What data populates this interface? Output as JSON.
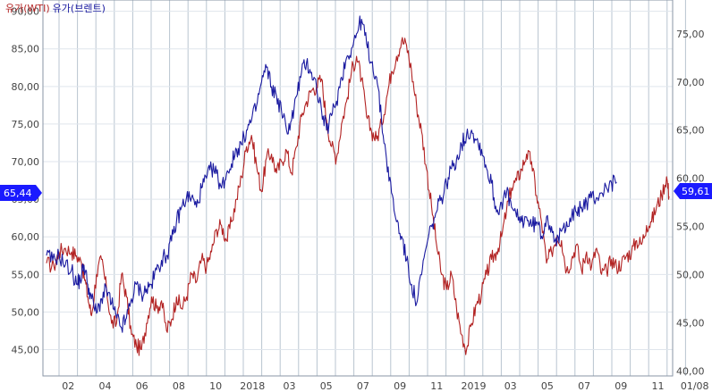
{
  "legend": {
    "wti": "유가(WTI)",
    "brent": "유가(브렌트)"
  },
  "colors": {
    "wti": "#b22222",
    "brent": "#1a1aa0",
    "grid": "#b8c4d0",
    "badge": "#1a1aff"
  },
  "chart_data": {
    "type": "line",
    "left_axis": {
      "min": 41.5,
      "max": 91.5,
      "ticks": [
        "45,00",
        "50,00",
        "55,00",
        "60,00",
        "65,00",
        "70,00",
        "75,00",
        "80,00",
        "85,00",
        "90,00"
      ],
      "tick_values": [
        45,
        50,
        55,
        60,
        65,
        70,
        75,
        80,
        85,
        90
      ]
    },
    "right_axis": {
      "min": 39.5,
      "max": 78.5,
      "ticks": [
        "40,00",
        "45,00",
        "50,00",
        "55,00",
        "60,00",
        "65,00",
        "70,00",
        "75,00"
      ],
      "tick_values": [
        40,
        45,
        50,
        55,
        60,
        65,
        70,
        75
      ]
    },
    "x_labels": [
      "02",
      "04",
      "06",
      "08",
      "10",
      "2018",
      "03",
      "05",
      "07",
      "09",
      "11",
      "2019",
      "03",
      "05",
      "07",
      "09",
      "11",
      "01/08"
    ],
    "x_label_positions": [
      0.5,
      2.5,
      4.5,
      6.5,
      8.5,
      10.5,
      12.5,
      14.5,
      16.5,
      18.5,
      20.5,
      22.5,
      24.5,
      26.5,
      28.5,
      30.5,
      32.5,
      34.5
    ],
    "gridline_positions": [
      0,
      1,
      2,
      3,
      4,
      5,
      6,
      7,
      8,
      9,
      10,
      11,
      12,
      13,
      14,
      15,
      16,
      17,
      18,
      19,
      20,
      21,
      22,
      23,
      24,
      25,
      26,
      27,
      28,
      29,
      30,
      31,
      32,
      33,
      34
    ],
    "last_value_left": "65,44",
    "last_value_right": "59,61",
    "grid": true,
    "series": [
      {
        "name": "유가(WTI)",
        "axis": "left",
        "points": [
          [
            0,
            56.5
          ],
          [
            0.6,
            56.0
          ],
          [
            1.0,
            58.0
          ],
          [
            1.5,
            58.5
          ],
          [
            2.0,
            58.0
          ],
          [
            2.4,
            57.5
          ],
          [
            2.8,
            56.5
          ],
          [
            3.0,
            55.0
          ],
          [
            3.3,
            52.0
          ],
          [
            3.6,
            49.5
          ],
          [
            4.0,
            55.0
          ],
          [
            4.4,
            57.0
          ],
          [
            4.8,
            53.0
          ],
          [
            5.2,
            48.5
          ],
          [
            5.6,
            48.5
          ],
          [
            6.0,
            55.0
          ],
          [
            6.4,
            52.0
          ],
          [
            6.8,
            47.0
          ],
          [
            7.2,
            45.5
          ],
          [
            7.6,
            45.0
          ],
          [
            8.0,
            48.5
          ],
          [
            8.4,
            52.0
          ],
          [
            8.8,
            50.5
          ],
          [
            9.2,
            51.5
          ],
          [
            9.6,
            47.5
          ],
          [
            10.0,
            49.0
          ],
          [
            10.4,
            52.0
          ],
          [
            10.8,
            50.5
          ],
          [
            11.2,
            52.0
          ],
          [
            11.6,
            55.0
          ],
          [
            12.0,
            54.0
          ],
          [
            12.4,
            57.0
          ],
          [
            12.8,
            56.0
          ],
          [
            13.2,
            58.0
          ],
          [
            13.6,
            61.0
          ],
          [
            14.0,
            61.5
          ],
          [
            14.4,
            59.5
          ],
          [
            14.8,
            62.0
          ],
          [
            15.2,
            65.0
          ],
          [
            15.6,
            68.0
          ],
          [
            16.0,
            72.0
          ],
          [
            16.4,
            73.5
          ],
          [
            16.8,
            69.5
          ],
          [
            17.2,
            66.0
          ],
          [
            17.6,
            70.5
          ],
          [
            18.0,
            71.0
          ],
          [
            18.4,
            68.5
          ],
          [
            18.8,
            70.0
          ],
          [
            19.2,
            71.5
          ],
          [
            19.6,
            68.5
          ],
          [
            20.0,
            72.0
          ],
          [
            20.4,
            76.0
          ],
          [
            20.8,
            78.0
          ],
          [
            21.2,
            79.5
          ],
          [
            21.6,
            80.0
          ],
          [
            22.0,
            81.0
          ],
          [
            22.4,
            75.5
          ],
          [
            22.8,
            72.0
          ],
          [
            23.2,
            70.5
          ],
          [
            23.6,
            75.0
          ],
          [
            24.0,
            78.0
          ],
          [
            24.4,
            82.0
          ],
          [
            24.8,
            84.0
          ],
          [
            25.2,
            81.0
          ],
          [
            25.6,
            76.0
          ],
          [
            26.0,
            74.0
          ],
          [
            26.4,
            73.0
          ],
          [
            26.8,
            75.0
          ],
          [
            27.2,
            78.5
          ],
          [
            27.6,
            82.0
          ],
          [
            28.0,
            84.0
          ],
          [
            28.4,
            86.0
          ],
          [
            28.8,
            85.5
          ],
          [
            29.2,
            82.0
          ],
          [
            29.6,
            77.5
          ],
          [
            30.0,
            74.0
          ],
          [
            30.4,
            69.0
          ],
          [
            30.8,
            64.0
          ],
          [
            31.2,
            59.0
          ],
          [
            31.6,
            55.0
          ],
          [
            32.0,
            53.0
          ],
          [
            32.4,
            55.0
          ],
          [
            32.8,
            50.5
          ],
          [
            33.2,
            47.0
          ],
          [
            33.6,
            45.0
          ],
          [
            34.0,
            48.5
          ],
          [
            34.4,
            51.0
          ],
          [
            34.8,
            52.5
          ],
          [
            35.2,
            55.0
          ],
          [
            35.6,
            57.0
          ],
          [
            36.0,
            58.0
          ],
          [
            36.4,
            60.0
          ],
          [
            36.8,
            63.5
          ],
          [
            37.2,
            66.5
          ],
          [
            37.6,
            67.5
          ],
          [
            38.0,
            69.0
          ],
          [
            38.4,
            71.0
          ],
          [
            38.8,
            70.0
          ],
          [
            39.2,
            65.5
          ],
          [
            39.6,
            62.0
          ],
          [
            40.0,
            56.5
          ],
          [
            40.4,
            58.0
          ],
          [
            40.8,
            60.0
          ],
          [
            41.2,
            59.5
          ],
          [
            41.6,
            55.5
          ],
          [
            42.0,
            57.0
          ],
          [
            42.4,
            59.0
          ],
          [
            42.8,
            55.5
          ],
          [
            43.2,
            58.0
          ],
          [
            43.6,
            56.0
          ],
          [
            44.0,
            58.5
          ],
          [
            44.4,
            55.0
          ],
          [
            44.8,
            55.5
          ],
          [
            45.2,
            57.0
          ],
          [
            45.6,
            56.0
          ],
          [
            46.0,
            56.5
          ],
          [
            46.4,
            57.5
          ],
          [
            46.8,
            58.0
          ],
          [
            47.2,
            59.5
          ],
          [
            47.6,
            59.0
          ],
          [
            48.0,
            61.5
          ],
          [
            48.4,
            62.0
          ],
          [
            48.8,
            64.0
          ],
          [
            49.2,
            65.5
          ],
          [
            49.6,
            68.0
          ],
          [
            49.8,
            65.4
          ]
        ]
      },
      {
        "name": "유가(브렌트)",
        "axis": "right",
        "points": [
          [
            0,
            52.0
          ],
          [
            0.5,
            51.5
          ],
          [
            1.0,
            52.0
          ],
          [
            1.5,
            51.0
          ],
          [
            2.0,
            50.5
          ],
          [
            2.4,
            49.0
          ],
          [
            2.7,
            49.5
          ],
          [
            3.0,
            51.0
          ],
          [
            3.3,
            49.0
          ],
          [
            3.6,
            47.5
          ],
          [
            4.0,
            46.0
          ],
          [
            4.4,
            47.5
          ],
          [
            4.8,
            48.5
          ],
          [
            5.2,
            47.0
          ],
          [
            5.6,
            45.5
          ],
          [
            6.0,
            44.5
          ],
          [
            6.4,
            45.5
          ],
          [
            6.8,
            47.5
          ],
          [
            7.2,
            49.0
          ],
          [
            7.6,
            48.0
          ],
          [
            8.0,
            48.5
          ],
          [
            8.4,
            49.0
          ],
          [
            8.8,
            50.5
          ],
          [
            9.2,
            51.5
          ],
          [
            9.6,
            52.0
          ],
          [
            10.0,
            53.5
          ],
          [
            10.4,
            55.5
          ],
          [
            10.8,
            57.0
          ],
          [
            11.2,
            58.0
          ],
          [
            11.6,
            58.0
          ],
          [
            12.0,
            57.0
          ],
          [
            12.4,
            59.0
          ],
          [
            12.8,
            60.0
          ],
          [
            13.2,
            61.0
          ],
          [
            13.6,
            60.5
          ],
          [
            14.0,
            59.0
          ],
          [
            14.4,
            60.5
          ],
          [
            14.8,
            61.5
          ],
          [
            15.2,
            63.0
          ],
          [
            15.6,
            63.5
          ],
          [
            16.0,
            65.0
          ],
          [
            16.4,
            66.0
          ],
          [
            16.8,
            67.5
          ],
          [
            17.2,
            70.0
          ],
          [
            17.6,
            71.5
          ],
          [
            18.0,
            69.5
          ],
          [
            18.4,
            68.5
          ],
          [
            18.8,
            67.0
          ],
          [
            19.2,
            65.0
          ],
          [
            19.6,
            66.0
          ],
          [
            20.0,
            68.5
          ],
          [
            20.4,
            71.0
          ],
          [
            20.8,
            72.0
          ],
          [
            21.2,
            71.0
          ],
          [
            21.6,
            69.5
          ],
          [
            22.0,
            67.0
          ],
          [
            22.4,
            65.0
          ],
          [
            22.8,
            66.5
          ],
          [
            23.2,
            68.0
          ],
          [
            23.6,
            70.5
          ],
          [
            24.0,
            72.5
          ],
          [
            24.4,
            73.5
          ],
          [
            24.8,
            75.0
          ],
          [
            25.2,
            76.5
          ],
          [
            25.6,
            74.0
          ],
          [
            26.0,
            72.0
          ],
          [
            26.4,
            70.5
          ],
          [
            26.8,
            66.0
          ],
          [
            27.2,
            62.0
          ],
          [
            27.6,
            58.5
          ],
          [
            28.0,
            55.5
          ],
          [
            28.4,
            54.0
          ],
          [
            28.8,
            51.5
          ],
          [
            29.2,
            49.0
          ],
          [
            29.6,
            47.0
          ],
          [
            30.0,
            50.0
          ],
          [
            30.4,
            53.0
          ],
          [
            30.8,
            55.0
          ],
          [
            31.2,
            56.5
          ],
          [
            31.6,
            58.0
          ],
          [
            32.0,
            59.5
          ],
          [
            32.4,
            61.0
          ],
          [
            32.8,
            62.0
          ],
          [
            33.2,
            63.5
          ],
          [
            33.6,
            64.5
          ],
          [
            34.0,
            65.0
          ],
          [
            34.4,
            64.0
          ],
          [
            34.8,
            63.0
          ],
          [
            35.2,
            61.0
          ],
          [
            35.6,
            59.5
          ],
          [
            36.0,
            56.5
          ],
          [
            36.4,
            57.5
          ],
          [
            36.8,
            58.5
          ],
          [
            37.2,
            57.0
          ],
          [
            37.6,
            56.0
          ],
          [
            38.0,
            55.5
          ],
          [
            38.4,
            56.0
          ],
          [
            38.8,
            55.0
          ],
          [
            39.2,
            55.5
          ],
          [
            39.6,
            54.0
          ],
          [
            40.0,
            56.0
          ],
          [
            40.4,
            55.0
          ],
          [
            40.8,
            53.0
          ],
          [
            41.2,
            54.5
          ],
          [
            41.6,
            55.5
          ],
          [
            42.0,
            56.0
          ],
          [
            42.4,
            56.5
          ],
          [
            42.8,
            57.0
          ],
          [
            43.2,
            57.5
          ],
          [
            43.6,
            58.0
          ],
          [
            44.0,
            58.0
          ],
          [
            44.4,
            58.5
          ],
          [
            44.8,
            59.0
          ],
          [
            45.2,
            59.5
          ],
          [
            45.6,
            59.61
          ]
        ]
      }
    ]
  }
}
